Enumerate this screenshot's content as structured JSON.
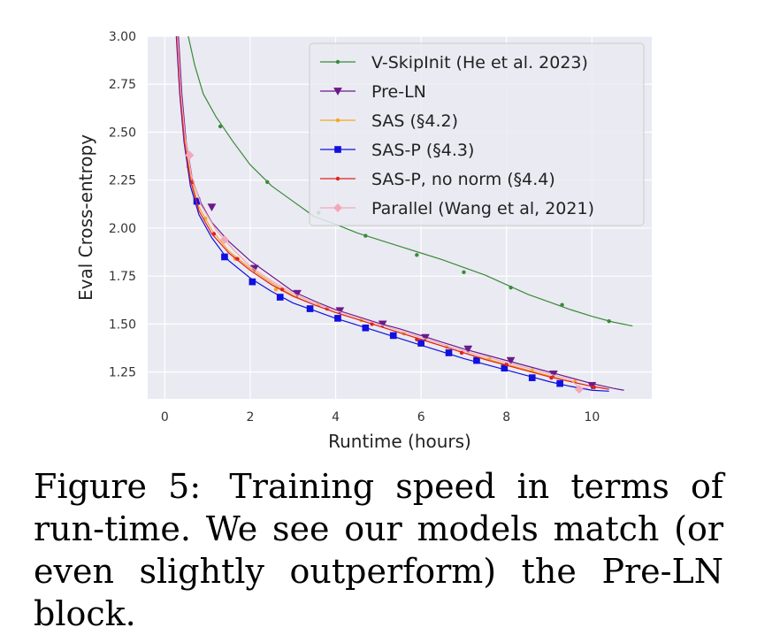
{
  "chart_data": {
    "type": "line",
    "title": "",
    "xlabel": "Runtime (hours)",
    "ylabel": "Eval Cross-entropy",
    "xlim": [
      -0.4,
      11.4
    ],
    "ylim": [
      1.11,
      3.0
    ],
    "xticks": [
      0,
      2,
      4,
      6,
      8,
      10
    ],
    "xtick_labels": [
      "0",
      "2",
      "4",
      "6",
      "8",
      "10"
    ],
    "yticks": [
      1.25,
      1.5,
      1.75,
      2.0,
      2.25,
      2.5,
      2.75,
      3.0
    ],
    "ytick_labels": [
      "1.25",
      "1.50",
      "1.75",
      "2.00",
      "2.25",
      "2.50",
      "2.75",
      "3.00"
    ],
    "grid": true,
    "legend_position": "top-right",
    "series": [
      {
        "name": "V-SkipInit (He et al. 2023)",
        "color": "#3a8a3a",
        "marker": "dot",
        "line": [
          [
            0.55,
            3.0
          ],
          [
            0.7,
            2.85
          ],
          [
            0.9,
            2.7
          ],
          [
            1.2,
            2.58
          ],
          [
            1.6,
            2.45
          ],
          [
            2.0,
            2.33
          ],
          [
            2.5,
            2.22
          ],
          [
            3.0,
            2.14
          ],
          [
            3.5,
            2.06
          ],
          [
            4.0,
            2.02
          ],
          [
            4.5,
            1.975
          ],
          [
            5.0,
            1.94
          ],
          [
            5.5,
            1.905
          ],
          [
            6.0,
            1.87
          ],
          [
            6.5,
            1.835
          ],
          [
            7.0,
            1.795
          ],
          [
            7.5,
            1.755
          ],
          [
            8.0,
            1.705
          ],
          [
            8.5,
            1.655
          ],
          [
            9.0,
            1.615
          ],
          [
            9.5,
            1.575
          ],
          [
            10.0,
            1.54
          ],
          [
            10.5,
            1.51
          ],
          [
            10.95,
            1.49
          ]
        ],
        "points": [
          [
            1.3,
            2.53
          ],
          [
            2.4,
            2.24
          ],
          [
            3.6,
            2.08
          ],
          [
            4.7,
            1.96
          ],
          [
            5.9,
            1.86
          ],
          [
            7.0,
            1.77
          ],
          [
            8.1,
            1.69
          ],
          [
            9.3,
            1.6
          ],
          [
            10.4,
            1.515
          ]
        ]
      },
      {
        "name": "Pre-LN",
        "color": "#6a1b8a",
        "marker": "triangle-down",
        "line": [
          [
            0.32,
            3.0
          ],
          [
            0.4,
            2.7
          ],
          [
            0.5,
            2.45
          ],
          [
            0.65,
            2.25
          ],
          [
            0.85,
            2.13
          ],
          [
            1.1,
            2.03
          ],
          [
            1.5,
            1.93
          ],
          [
            2.0,
            1.83
          ],
          [
            2.5,
            1.75
          ],
          [
            3.0,
            1.67
          ],
          [
            3.5,
            1.62
          ],
          [
            4.0,
            1.575
          ],
          [
            4.5,
            1.54
          ],
          [
            5.0,
            1.505
          ],
          [
            5.5,
            1.475
          ],
          [
            6.0,
            1.44
          ],
          [
            6.5,
            1.405
          ],
          [
            7.0,
            1.37
          ],
          [
            7.5,
            1.34
          ],
          [
            8.0,
            1.31
          ],
          [
            8.5,
            1.28
          ],
          [
            9.0,
            1.25
          ],
          [
            9.5,
            1.22
          ],
          [
            10.0,
            1.19
          ],
          [
            10.5,
            1.165
          ],
          [
            10.75,
            1.155
          ]
        ],
        "points": [
          [
            1.1,
            2.11
          ],
          [
            2.1,
            1.79
          ],
          [
            3.1,
            1.66
          ],
          [
            4.1,
            1.57
          ],
          [
            5.1,
            1.5
          ],
          [
            6.1,
            1.43
          ],
          [
            7.1,
            1.37
          ],
          [
            8.1,
            1.31
          ],
          [
            9.1,
            1.24
          ],
          [
            10.0,
            1.18
          ]
        ]
      },
      {
        "name": "SAS (§4.2)",
        "color": "#f5a623",
        "marker": "dot",
        "line": [
          [
            0.29,
            3.0
          ],
          [
            0.37,
            2.7
          ],
          [
            0.47,
            2.45
          ],
          [
            0.6,
            2.27
          ],
          [
            0.8,
            2.11
          ],
          [
            1.1,
            1.99
          ],
          [
            1.5,
            1.88
          ],
          [
            2.0,
            1.79
          ],
          [
            2.5,
            1.715
          ],
          [
            3.0,
            1.65
          ],
          [
            3.5,
            1.6
          ],
          [
            4.0,
            1.56
          ],
          [
            4.5,
            1.525
          ],
          [
            5.0,
            1.49
          ],
          [
            5.5,
            1.455
          ],
          [
            6.0,
            1.42
          ],
          [
            6.5,
            1.385
          ],
          [
            7.0,
            1.35
          ],
          [
            7.5,
            1.32
          ],
          [
            8.0,
            1.29
          ],
          [
            8.5,
            1.26
          ],
          [
            9.0,
            1.23
          ],
          [
            9.5,
            1.2
          ],
          [
            10.0,
            1.175
          ],
          [
            10.3,
            1.165
          ]
        ],
        "points": [
          [
            0.55,
            2.32
          ],
          [
            0.95,
            2.05
          ],
          [
            1.65,
            1.84
          ],
          [
            2.6,
            1.68
          ],
          [
            3.6,
            1.6
          ],
          [
            4.6,
            1.52
          ],
          [
            5.6,
            1.45
          ],
          [
            6.6,
            1.38
          ],
          [
            7.6,
            1.32
          ],
          [
            8.6,
            1.26
          ],
          [
            9.6,
            1.2
          ]
        ]
      },
      {
        "name": "SAS-P (§4.3)",
        "color": "#1010e0",
        "marker": "square",
        "line": [
          [
            0.27,
            3.0
          ],
          [
            0.35,
            2.7
          ],
          [
            0.45,
            2.45
          ],
          [
            0.6,
            2.22
          ],
          [
            0.8,
            2.07
          ],
          [
            1.1,
            1.95
          ],
          [
            1.5,
            1.83
          ],
          [
            2.0,
            1.74
          ],
          [
            2.5,
            1.67
          ],
          [
            3.0,
            1.61
          ],
          [
            3.5,
            1.57
          ],
          [
            4.0,
            1.53
          ],
          [
            4.5,
            1.495
          ],
          [
            5.0,
            1.46
          ],
          [
            5.5,
            1.425
          ],
          [
            6.0,
            1.39
          ],
          [
            6.5,
            1.355
          ],
          [
            7.0,
            1.32
          ],
          [
            7.5,
            1.29
          ],
          [
            8.0,
            1.26
          ],
          [
            8.5,
            1.23
          ],
          [
            9.0,
            1.2
          ],
          [
            9.5,
            1.175
          ],
          [
            10.0,
            1.155
          ],
          [
            10.4,
            1.15
          ]
        ],
        "points": [
          [
            0.75,
            2.14
          ],
          [
            1.4,
            1.85
          ],
          [
            2.05,
            1.72
          ],
          [
            2.7,
            1.64
          ],
          [
            3.4,
            1.58
          ],
          [
            4.05,
            1.53
          ],
          [
            4.7,
            1.48
          ],
          [
            5.35,
            1.44
          ],
          [
            6.0,
            1.4
          ],
          [
            6.65,
            1.35
          ],
          [
            7.3,
            1.31
          ],
          [
            7.95,
            1.27
          ],
          [
            8.6,
            1.22
          ],
          [
            9.25,
            1.19
          ]
        ]
      },
      {
        "name": "SAS-P, no norm (§4.4)",
        "color": "#e02020",
        "marker": "dot",
        "line": [
          [
            0.28,
            3.0
          ],
          [
            0.36,
            2.7
          ],
          [
            0.46,
            2.45
          ],
          [
            0.6,
            2.25
          ],
          [
            0.8,
            2.09
          ],
          [
            1.1,
            1.97
          ],
          [
            1.5,
            1.87
          ],
          [
            2.0,
            1.78
          ],
          [
            2.5,
            1.705
          ],
          [
            3.0,
            1.645
          ],
          [
            3.5,
            1.6
          ],
          [
            4.0,
            1.56
          ],
          [
            4.5,
            1.525
          ],
          [
            5.0,
            1.49
          ],
          [
            5.5,
            1.455
          ],
          [
            6.0,
            1.42
          ],
          [
            6.5,
            1.385
          ],
          [
            7.0,
            1.35
          ],
          [
            7.5,
            1.315
          ],
          [
            8.0,
            1.285
          ],
          [
            8.5,
            1.255
          ],
          [
            9.0,
            1.225
          ],
          [
            9.5,
            1.2
          ],
          [
            10.0,
            1.175
          ],
          [
            10.4,
            1.16
          ]
        ],
        "points": [
          [
            0.65,
            2.24
          ],
          [
            1.15,
            1.97
          ],
          [
            1.7,
            1.84
          ],
          [
            2.75,
            1.68
          ],
          [
            3.8,
            1.58
          ],
          [
            4.85,
            1.5
          ],
          [
            5.9,
            1.42
          ],
          [
            6.95,
            1.35
          ],
          [
            8.0,
            1.29
          ],
          [
            9.05,
            1.22
          ],
          [
            10.05,
            1.17
          ]
        ]
      },
      {
        "name": "Parallel (Wang et al, 2021)",
        "color": "#f4a7b9",
        "marker": "diamond",
        "line": [
          [
            0.3,
            3.0
          ],
          [
            0.38,
            2.7
          ],
          [
            0.48,
            2.47
          ],
          [
            0.62,
            2.28
          ],
          [
            0.85,
            2.12
          ],
          [
            1.2,
            1.99
          ],
          [
            1.6,
            1.89
          ],
          [
            2.0,
            1.8
          ],
          [
            2.5,
            1.725
          ],
          [
            3.0,
            1.66
          ],
          [
            3.5,
            1.61
          ],
          [
            4.0,
            1.57
          ],
          [
            4.5,
            1.535
          ],
          [
            5.0,
            1.5
          ],
          [
            5.5,
            1.465
          ],
          [
            6.0,
            1.43
          ],
          [
            6.5,
            1.395
          ],
          [
            7.0,
            1.36
          ],
          [
            7.5,
            1.33
          ],
          [
            8.0,
            1.3
          ],
          [
            8.5,
            1.27
          ],
          [
            9.0,
            1.24
          ],
          [
            9.5,
            1.21
          ],
          [
            9.7,
            1.17
          ],
          [
            9.9,
            1.165
          ]
        ],
        "points": [
          [
            0.58,
            2.38
          ],
          [
            1.4,
            1.94
          ],
          [
            9.7,
            1.16
          ]
        ]
      }
    ]
  },
  "caption": {
    "label": "Figure 5:",
    "text": "Training speed in terms of run-time. We see our models match (or even slightly outperform) the Pre-LN block."
  }
}
